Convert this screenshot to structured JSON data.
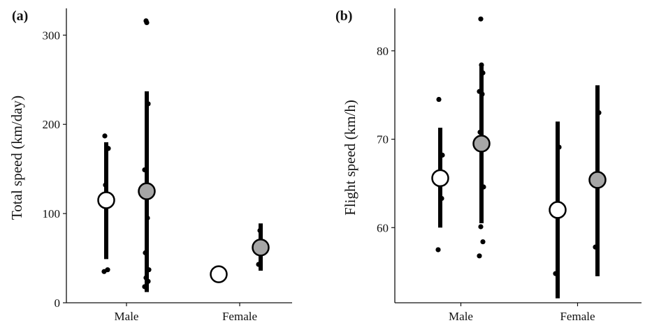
{
  "chart_data": [
    {
      "type": "scatter",
      "panel_label": "(a)",
      "ylabel": "Total speed (km/day)",
      "xlabel": "",
      "categories": [
        "Male",
        "Female"
      ],
      "yticks": [
        "0",
        "100",
        "200",
        "300"
      ],
      "ylim": [
        0,
        330
      ],
      "groups": [
        {
          "category": "Male",
          "fill": "#ffffff",
          "mean": 115,
          "lower": 49,
          "upper": 180,
          "points": [
            35,
            37,
            132,
            173,
            187
          ]
        },
        {
          "category": "Male",
          "fill": "#a6a6a6",
          "mean": 125,
          "lower": 12,
          "upper": 237,
          "points": [
            18,
            24,
            28,
            37,
            56,
            95,
            149,
            223,
            314,
            316
          ]
        },
        {
          "category": "Female",
          "fill": "#ffffff",
          "mean": 32,
          "lower": null,
          "upper": null,
          "points": []
        },
        {
          "category": "Female",
          "fill": "#a6a6a6",
          "mean": 62,
          "lower": 36,
          "upper": 89,
          "points": [
            43,
            62,
            81
          ]
        }
      ]
    },
    {
      "type": "scatter",
      "panel_label": "(b)",
      "ylabel": "Flight speed (km/h)",
      "xlabel": "",
      "categories": [
        "Male",
        "Female"
      ],
      "yticks": [
        "60",
        "70",
        "80"
      ],
      "ylim": [
        51.5,
        84.8
      ],
      "groups": [
        {
          "category": "Male",
          "fill": "#ffffff",
          "mean": 65.6,
          "lower": 60,
          "upper": 71.3,
          "points": [
            57.5,
            63.3,
            64.8,
            68.2,
            74.5
          ]
        },
        {
          "category": "Male",
          "fill": "#a6a6a6",
          "mean": 69.5,
          "lower": 60.5,
          "upper": 78.5,
          "points": [
            56.8,
            58.4,
            60.1,
            64.6,
            70.8,
            75.1,
            75.4,
            77.5,
            78.4,
            83.6
          ]
        },
        {
          "category": "Female",
          "fill": "#ffffff",
          "mean": 62,
          "lower": 52,
          "upper": 72,
          "points": [
            54.8,
            69.1
          ]
        },
        {
          "category": "Female",
          "fill": "#a6a6a6",
          "mean": 65.4,
          "lower": 54.5,
          "upper": 76.1,
          "points": [
            57.8,
            73
          ]
        }
      ]
    }
  ]
}
